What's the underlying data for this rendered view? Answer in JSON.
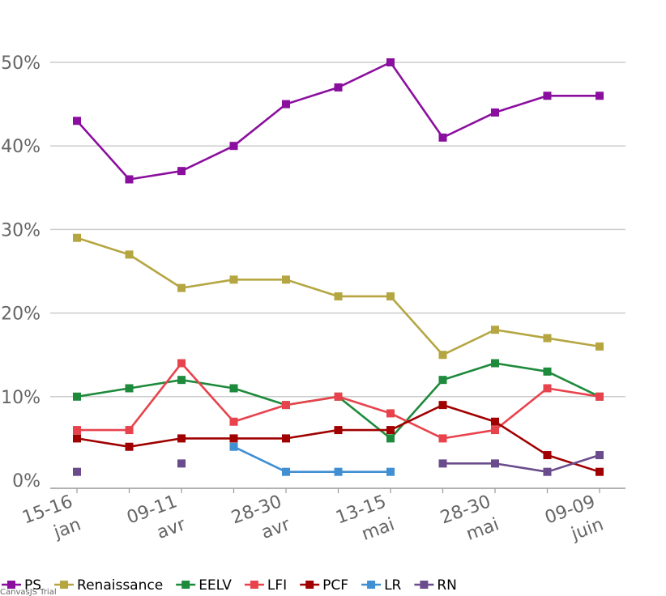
{
  "chart_data": {
    "type": "line",
    "title": "",
    "xlabel": "",
    "ylabel": "",
    "ylim": [
      0,
      50
    ],
    "yticks": [
      "0%",
      "10%",
      "20%",
      "30%",
      "40%",
      "50%"
    ],
    "ytick_values": [
      0,
      10,
      20,
      30,
      40,
      50
    ],
    "categories": [
      "15-16 jan",
      "",
      "09-11 avr",
      "",
      "28-30 avr",
      "",
      "13-15 mai",
      "",
      "28-30 mai",
      "",
      "09-09 juin"
    ],
    "x_tick_labels": [
      {
        "index": 0,
        "line1": "15-16",
        "line2": "jan"
      },
      {
        "index": 2,
        "line1": "09-11",
        "line2": "avr"
      },
      {
        "index": 4,
        "line1": "28-30",
        "line2": "avr"
      },
      {
        "index": 6,
        "line1": "13-15",
        "line2": "mai"
      },
      {
        "index": 8,
        "line1": "28-30",
        "line2": "mai"
      },
      {
        "index": 10,
        "line1": "09-09",
        "line2": "juin"
      }
    ],
    "grid": true,
    "legend_position": "bottom-left",
    "series": [
      {
        "name": "PS",
        "color": "#8b0f9e",
        "values": [
          43,
          36,
          37,
          40,
          45,
          47,
          50,
          41,
          44,
          46,
          46
        ]
      },
      {
        "name": "Renaissance",
        "color": "#b5a642",
        "values": [
          29,
          27,
          23,
          24,
          24,
          22,
          22,
          15,
          18,
          17,
          16
        ]
      },
      {
        "name": "EELV",
        "color": "#1e8a3c",
        "values": [
          10,
          11,
          12,
          11,
          9,
          10,
          5,
          12,
          14,
          13,
          10
        ]
      },
      {
        "name": "LFI",
        "color": "#e8434d",
        "values": [
          6,
          6,
          14,
          7,
          9,
          10,
          8,
          5,
          6,
          11,
          10
        ]
      },
      {
        "name": "PCF",
        "color": "#a00000",
        "values": [
          5,
          4,
          5,
          5,
          5,
          6,
          6,
          9,
          7,
          3,
          1
        ]
      },
      {
        "name": "LR",
        "color": "#3f8fd2",
        "values": [
          null,
          null,
          null,
          4,
          1,
          1,
          1,
          null,
          null,
          null,
          null
        ]
      },
      {
        "name": "RN",
        "color": "#6a4c8c",
        "values": [
          1,
          null,
          2,
          null,
          null,
          null,
          null,
          2,
          2,
          1,
          3
        ]
      }
    ]
  },
  "credit_text": "CanvasJS Trial"
}
